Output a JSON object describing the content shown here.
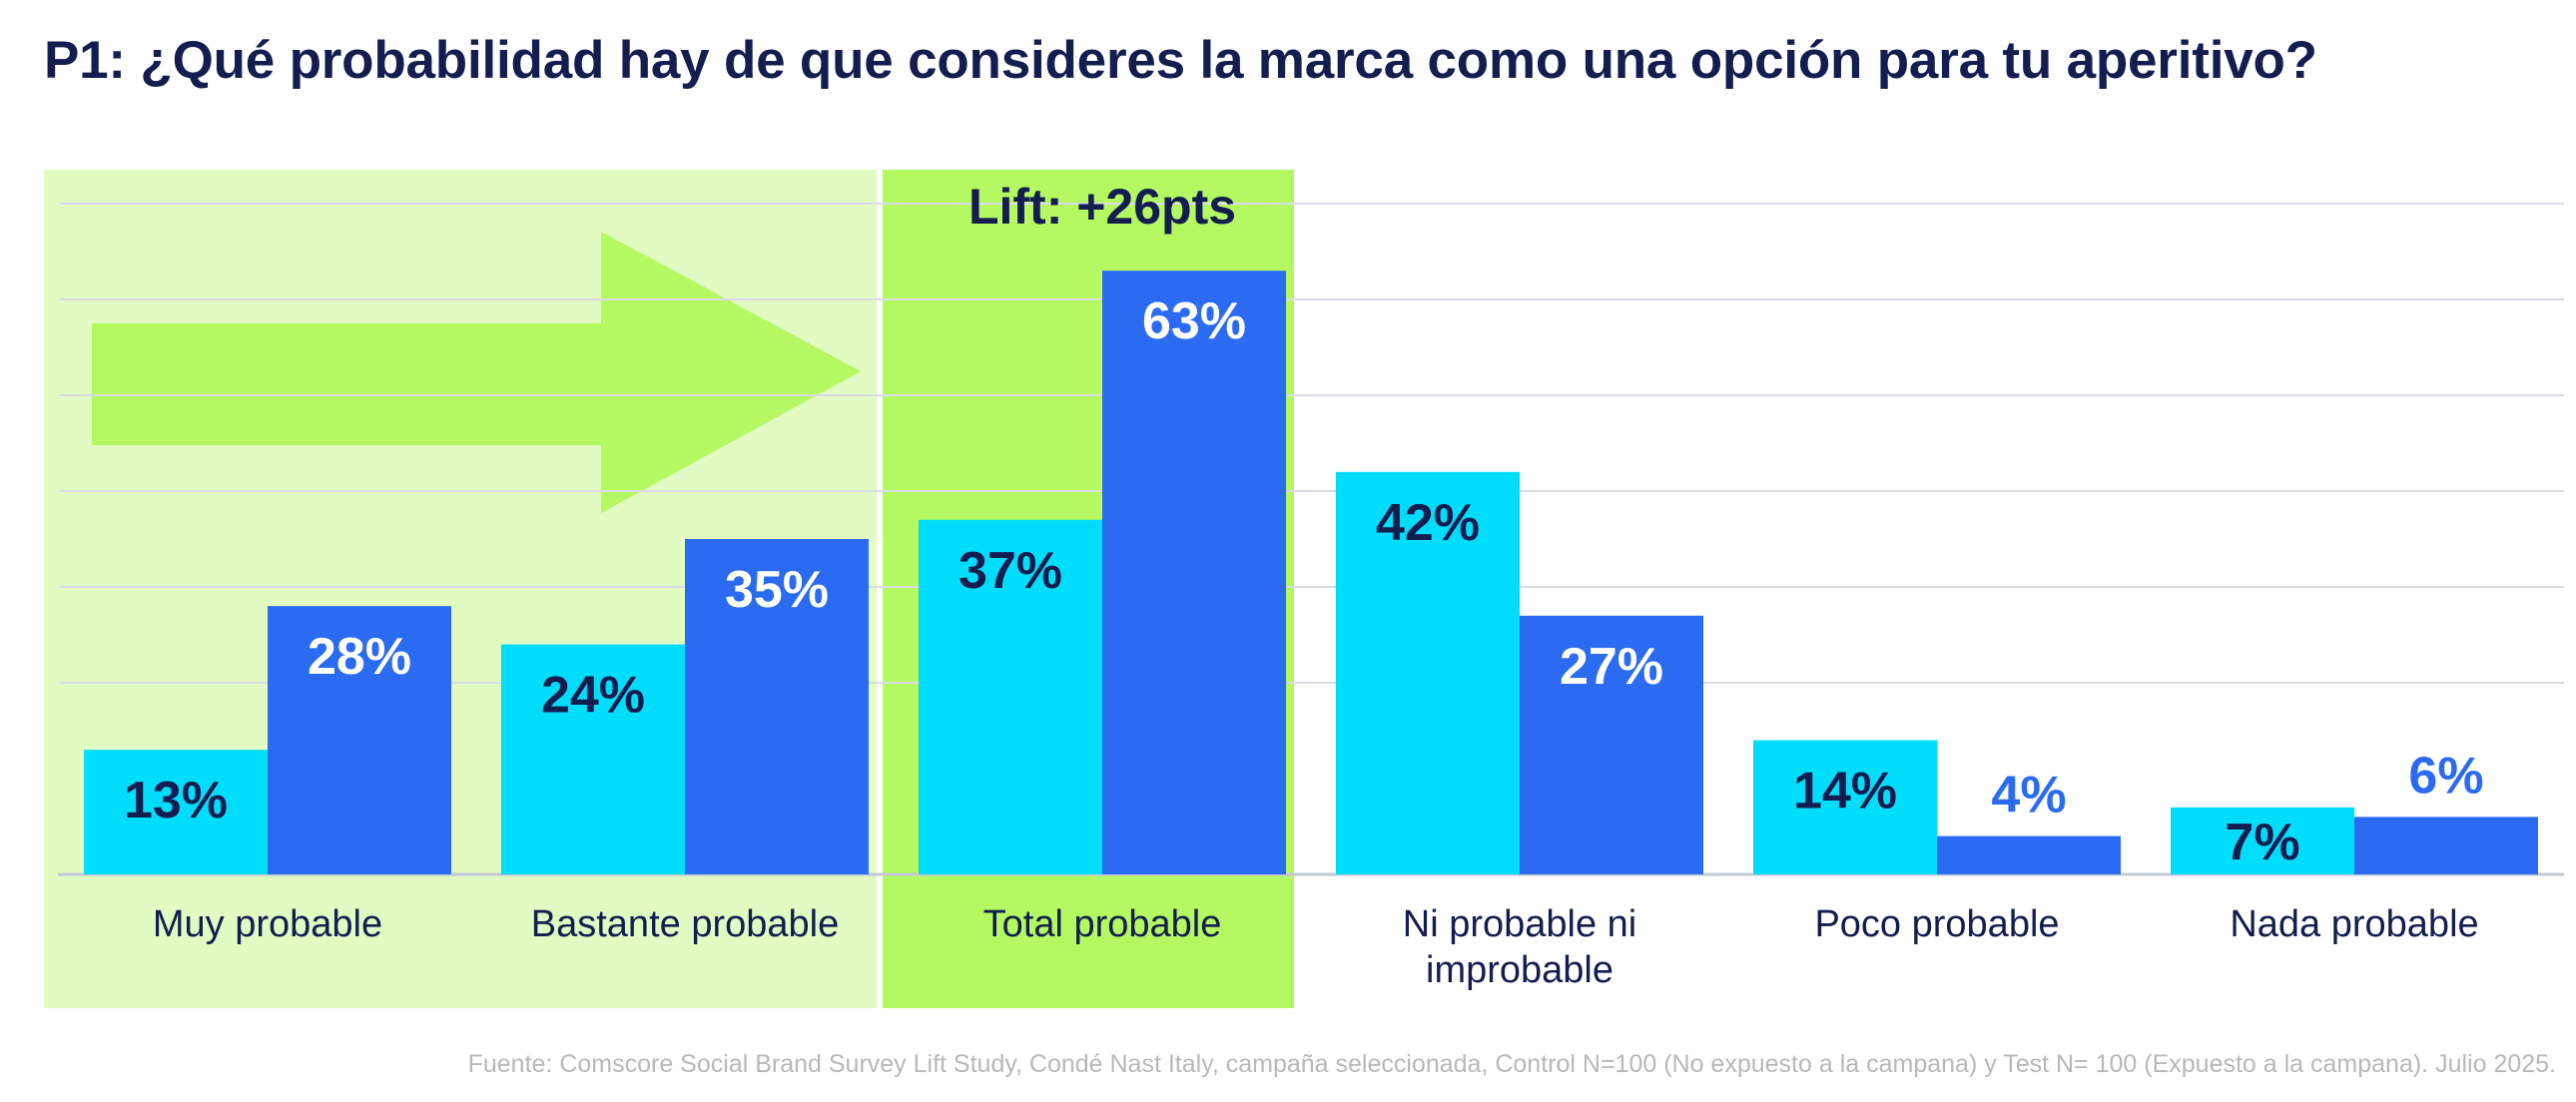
{
  "chart_data": {
    "type": "bar",
    "title": "P1: ¿Qué probabilidad hay de que consideres la marca como una opción para tu aperitivo?",
    "categories": [
      "Muy probable",
      "Bastante probable",
      "Total probable",
      "Ni probable ni improbable",
      "Poco probable",
      "Nada probable"
    ],
    "category_lines": [
      [
        "Muy probable"
      ],
      [
        "Bastante probable"
      ],
      [
        "Total probable"
      ],
      [
        "Ni probable ni",
        "improbable"
      ],
      [
        "Poco probable"
      ],
      [
        "Nada probable"
      ]
    ],
    "series": [
      {
        "name": "Control",
        "values": [
          13,
          24,
          37,
          42,
          14,
          7
        ],
        "labels": [
          "13%",
          "24%",
          "37%",
          "42%",
          "14%",
          "7%"
        ]
      },
      {
        "name": "Test",
        "values": [
          28,
          35,
          63,
          27,
          4,
          6
        ],
        "labels": [
          "28%",
          "35%",
          "63%",
          "27%",
          "4%",
          "6%"
        ]
      }
    ],
    "ylim": [
      0,
      70
    ],
    "grid": true,
    "xlabel": "",
    "ylabel": "",
    "annotation": "Lift: +26pts",
    "highlight_category": "Total probable",
    "colors": {
      "title": "#131d4f",
      "control": "#00ddfb",
      "test": "#2a6bf1",
      "label_dark": "#131d4f",
      "label_light": "#ffffff",
      "label_blue": "#2a6bf1",
      "panel_light": "#e1fbc3",
      "panel_bright": "#b4f961",
      "arrow": "#b4f961",
      "gridline": "#d9dce6",
      "axis": "#c4c8d4",
      "category_text": "#131d4f",
      "source_text": "#b8b8b8"
    }
  },
  "footer": {
    "source": "Fuente: Comscore Social Brand Survey Lift Study, Condé Nast Italy, campaña seleccionada, Control N=100  (No expuesto a la campana) y Test N= 100 (Expuesto a la campana). Julio 2025."
  }
}
